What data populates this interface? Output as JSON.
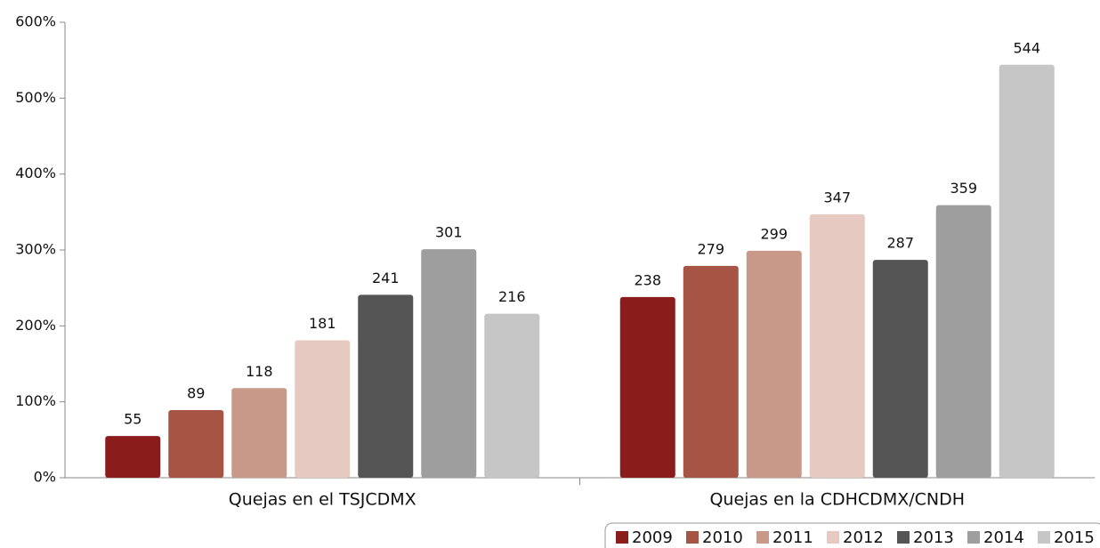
{
  "chart_data": {
    "type": "bar",
    "categories": [
      "Quejas en el TSJCDMX",
      "Quejas en la CDHCDMX/CNDH"
    ],
    "series": [
      {
        "name": "2009",
        "color": "#8b1c1c",
        "values": [
          55,
          238
        ]
      },
      {
        "name": "2010",
        "color": "#a65444",
        "values": [
          89,
          279
        ]
      },
      {
        "name": "2011",
        "color": "#c89888",
        "values": [
          118,
          299
        ]
      },
      {
        "name": "2012",
        "color": "#e6c9c0",
        "values": [
          181,
          347
        ]
      },
      {
        "name": "2013",
        "color": "#555555",
        "values": [
          241,
          287
        ]
      },
      {
        "name": "2014",
        "color": "#9e9e9e",
        "values": [
          301,
          359
        ]
      },
      {
        "name": "2015",
        "color": "#c6c6c6",
        "values": [
          216,
          544
        ]
      }
    ],
    "ylim": [
      0,
      600
    ],
    "yticks": [
      {
        "value": 0,
        "label": "0%"
      },
      {
        "value": 100,
        "label": "100%"
      },
      {
        "value": 200,
        "label": "200%"
      },
      {
        "value": 300,
        "label": "300%"
      },
      {
        "value": 400,
        "label": "400%"
      },
      {
        "value": 500,
        "label": "500%"
      },
      {
        "value": 600,
        "label": "600%"
      }
    ],
    "legend": "bottom-right"
  }
}
